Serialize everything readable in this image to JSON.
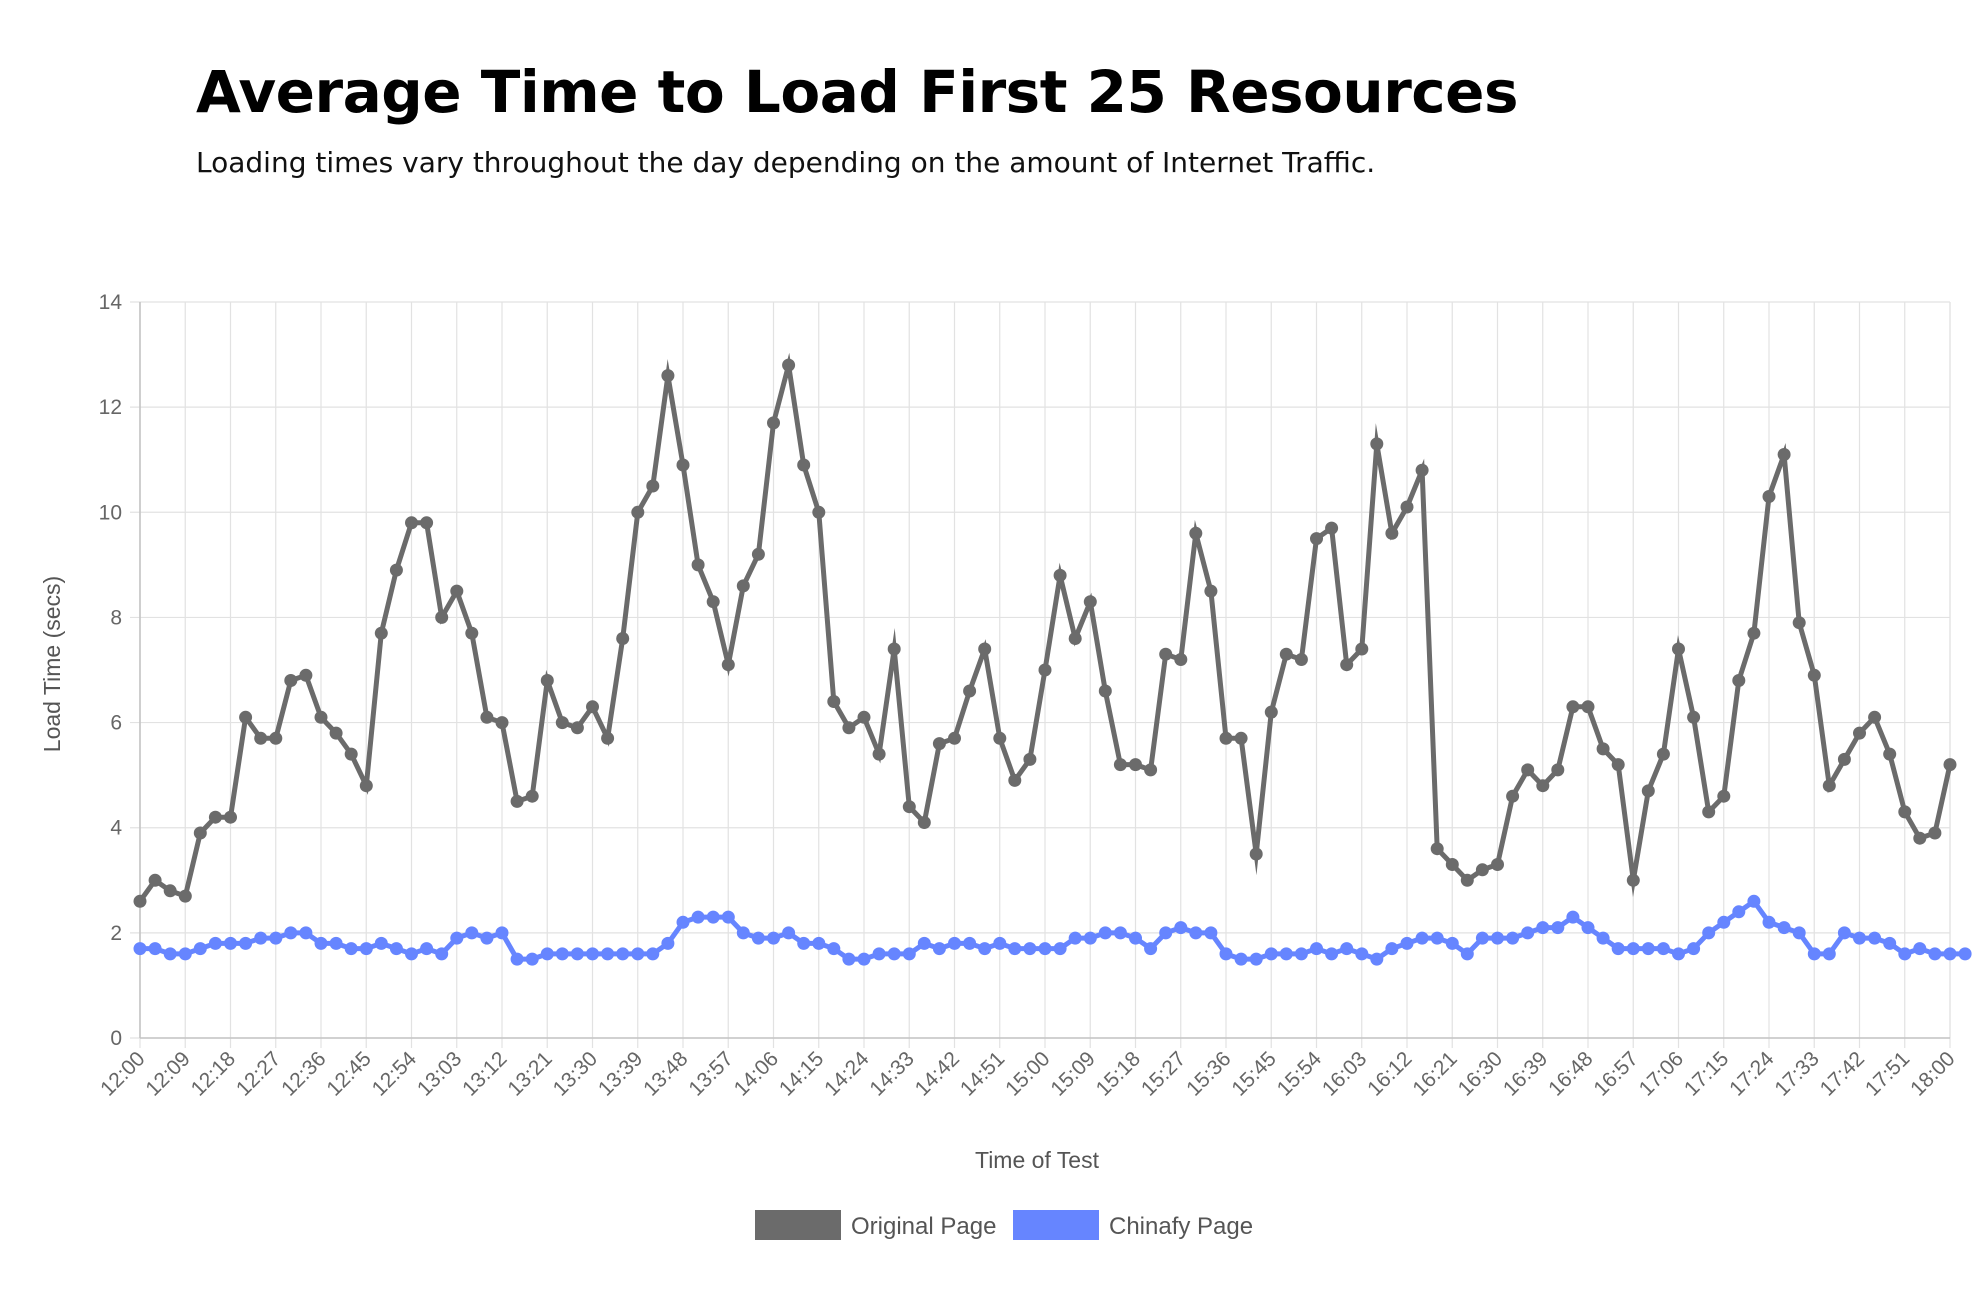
{
  "chart_data": {
    "type": "line",
    "title": "Average Time to Load First 25 Resources",
    "subtitle": "Loading times vary throughout the day depending on the amount of Internet Traffic.",
    "xlabel": "Time of Test",
    "ylabel": "Load Time (secs)",
    "ylim": [
      0,
      14
    ],
    "yticks": [
      "0",
      "2",
      "4",
      "6",
      "8",
      "10",
      "12",
      "14"
    ],
    "xtick_labels": [
      "12:00",
      "12:09",
      "12:18",
      "12:27",
      "12:36",
      "12:45",
      "12:54",
      "13:03",
      "13:12",
      "13:21",
      "13:30",
      "13:39",
      "13:48",
      "13:57",
      "14:06",
      "14:15",
      "14:24",
      "14:33",
      "14:42",
      "14:51",
      "15:00",
      "15:09",
      "15:18",
      "15:27",
      "15:36",
      "15:45",
      "15:54",
      "16:03",
      "16:12",
      "16:21",
      "16:30",
      "16:39",
      "16:48",
      "16:57",
      "17:06",
      "17:15",
      "17:24",
      "17:33",
      "17:42",
      "17:51",
      "18:00"
    ],
    "x_start": "12:00",
    "x_interval_minutes": 3,
    "grid": true,
    "legend_position": "bottom",
    "series": [
      {
        "name": "Original Page",
        "color": "#6b6b6b",
        "values": [
          2.6,
          3.0,
          2.8,
          2.7,
          3.9,
          4.2,
          4.2,
          6.1,
          5.7,
          5.7,
          6.8,
          6.9,
          6.1,
          5.8,
          5.4,
          4.8,
          7.7,
          8.9,
          9.8,
          9.8,
          8.0,
          8.5,
          7.7,
          6.1,
          6.0,
          4.5,
          4.6,
          6.8,
          6.0,
          5.9,
          6.3,
          5.7,
          7.6,
          10.0,
          10.5,
          12.6,
          10.9,
          9.0,
          8.3,
          7.1,
          8.6,
          9.2,
          11.7,
          12.8,
          10.9,
          10.0,
          6.4,
          5.9,
          6.1,
          5.4,
          7.4,
          4.4,
          4.1,
          5.6,
          5.7,
          6.6,
          7.4,
          5.7,
          4.9,
          5.3,
          7.0,
          8.8,
          7.6,
          8.3,
          6.6,
          5.2,
          5.2,
          5.1,
          7.3,
          7.2,
          9.6,
          8.5,
          5.7,
          5.7,
          3.5,
          6.2,
          7.3,
          7.2,
          9.5,
          9.7,
          7.1,
          7.4,
          11.3,
          9.6,
          10.1,
          10.8,
          3.6,
          3.3,
          3.0,
          3.2,
          3.3,
          4.6,
          5.1,
          4.8,
          5.1,
          6.3,
          6.3,
          5.5,
          5.2,
          3.0,
          4.7,
          5.4,
          7.4,
          6.1,
          4.3,
          4.6,
          6.8,
          7.7,
          10.3,
          11.1,
          7.9,
          6.9,
          4.8,
          5.3,
          5.8,
          6.1,
          5.4,
          4.3,
          3.8,
          3.9,
          5.2
        ]
      },
      {
        "name": "Chinafy Page",
        "color": "#6685ff",
        "values": [
          1.7,
          1.7,
          1.6,
          1.6,
          1.7,
          1.8,
          1.8,
          1.8,
          1.9,
          1.9,
          2.0,
          2.0,
          1.8,
          1.8,
          1.7,
          1.7,
          1.8,
          1.7,
          1.6,
          1.7,
          1.6,
          1.9,
          2.0,
          1.9,
          2.0,
          1.5,
          1.5,
          1.6,
          1.6,
          1.6,
          1.6,
          1.6,
          1.6,
          1.6,
          1.6,
          1.8,
          2.2,
          2.3,
          2.3,
          2.3,
          2.0,
          1.9,
          1.9,
          2.0,
          1.8,
          1.8,
          1.7,
          1.5,
          1.5,
          1.6,
          1.6,
          1.6,
          1.8,
          1.7,
          1.8,
          1.8,
          1.7,
          1.8,
          1.7,
          1.7,
          1.7,
          1.7,
          1.9,
          1.9,
          2.0,
          2.0,
          1.9,
          1.7,
          2.0,
          2.1,
          2.0,
          2.0,
          1.6,
          1.5,
          1.5,
          1.6,
          1.6,
          1.6,
          1.7,
          1.6,
          1.7,
          1.6,
          1.5,
          1.7,
          1.8,
          1.9,
          1.9,
          1.8,
          1.6,
          1.9,
          1.9,
          1.9,
          2.0,
          2.1,
          2.1,
          2.3,
          2.1,
          1.9,
          1.7,
          1.7,
          1.7,
          1.7,
          1.6,
          1.7,
          2.0,
          2.2,
          2.4,
          2.6,
          2.2,
          2.1,
          2.0,
          1.6,
          1.6,
          2.0,
          1.9,
          1.9,
          1.8,
          1.6,
          1.7,
          1.6,
          1.6,
          1.6
        ]
      }
    ]
  }
}
